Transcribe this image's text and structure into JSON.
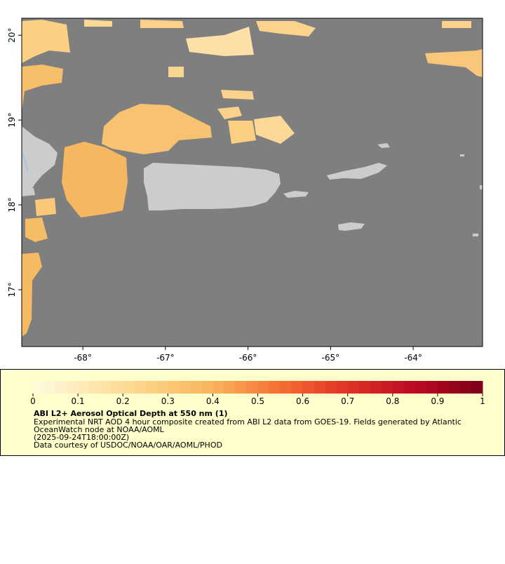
{
  "map": {
    "xlim": [
      -68.74,
      -63.16
    ],
    "ylim": [
      16.33,
      20.2
    ],
    "xticks": [
      {
        "value": -68,
        "label": "-68°"
      },
      {
        "value": -67,
        "label": "-67°"
      },
      {
        "value": -66,
        "label": "-66°"
      },
      {
        "value": -65,
        "label": "-65°"
      },
      {
        "value": -64,
        "label": "-64°"
      }
    ],
    "yticks": [
      {
        "value": 17,
        "label": "17°"
      },
      {
        "value": 18,
        "label": "18°"
      },
      {
        "value": 19,
        "label": "19°"
      },
      {
        "value": 20,
        "label": "20°"
      }
    ]
  },
  "colorbar": {
    "range": [
      0,
      1
    ],
    "ticks": [
      0,
      0.1,
      0.2,
      0.3,
      0.4,
      0.5,
      0.6,
      0.7,
      0.8,
      0.9,
      1
    ]
  },
  "caption": {
    "title": "ABI L2+ Aerosol Optical Depth at 550 nm (1)",
    "lines": [
      "Experimental NRT AOD 4 hour composite created from ABI L2 data from GOES-19. Fields generated by Atlantic",
      "OceanWatch node at NOAA/AOML",
      "(2025-09-24T18:00:00Z)",
      "Data courtesy of USDOC/NOAA/OAR/AOML/PHOD"
    ]
  }
}
